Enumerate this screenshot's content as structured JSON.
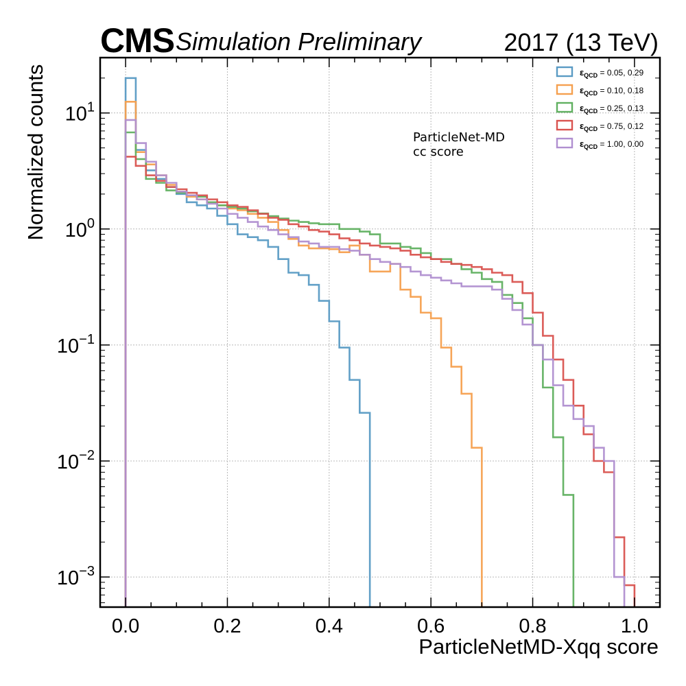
{
  "header": {
    "experiment": "CMS",
    "status": "Simulation Preliminary",
    "lumi": "2017 (13 TeV)"
  },
  "annotation": {
    "line1": "ParticleNet-MD",
    "line2": "cc score"
  },
  "chart_data": {
    "type": "histogram-step",
    "xlabel": "ParticleNetMD-Xqq score",
    "ylabel": "Normalized counts",
    "xlim": [
      -0.05,
      1.05
    ],
    "ylim": [
      0.00055,
      30
    ],
    "yscale": "log",
    "grid": true,
    "legend_position": "top-right",
    "x_ticks": [
      "0.0",
      "0.2",
      "0.4",
      "0.6",
      "0.8",
      "1.0"
    ],
    "x_tick_values": [
      0.0,
      0.2,
      0.4,
      0.6,
      0.8,
      1.0
    ],
    "y_ticks": [
      {
        "value": 10,
        "base": "10",
        "exp": "1"
      },
      {
        "value": 1,
        "base": "10",
        "exp": "0"
      },
      {
        "value": 0.1,
        "base": "10",
        "exp": "−1"
      },
      {
        "value": 0.01,
        "base": "10",
        "exp": "−2"
      },
      {
        "value": 0.001,
        "base": "10",
        "exp": "−3"
      }
    ],
    "bin_width": 0.02,
    "bin_edges_start": 0.0,
    "series": [
      {
        "name": "ε_QCD = 0.05, 0.29",
        "legend_symbol": "ε",
        "legend_sub": "QCD",
        "legend_value": " = 0.05, 0.29",
        "color": "#5a9bc4",
        "values": [
          20.0,
          4.8,
          3.2,
          2.7,
          2.3,
          2.0,
          1.7,
          1.6,
          1.5,
          1.3,
          1.1,
          0.9,
          0.85,
          0.8,
          0.7,
          0.55,
          0.42,
          0.4,
          0.33,
          0.24,
          0.16,
          0.095,
          0.05,
          0.026,
          0,
          0,
          0,
          0,
          0,
          0,
          0,
          0,
          0,
          0,
          0,
          0,
          0,
          0,
          0,
          0,
          0,
          0,
          0,
          0,
          0,
          0,
          0,
          0,
          0,
          0
        ]
      },
      {
        "name": "ε_QCD = 0.10, 0.18",
        "legend_symbol": "ε",
        "legend_sub": "QCD",
        "legend_value": " = 0.10, 0.18",
        "color": "#f5a04f",
        "values": [
          12.5,
          4.6,
          3.6,
          2.9,
          2.4,
          2.1,
          1.9,
          1.8,
          1.7,
          1.6,
          1.5,
          1.45,
          1.35,
          1.25,
          1.15,
          0.98,
          0.82,
          0.72,
          0.68,
          0.68,
          0.67,
          0.63,
          0.72,
          0.6,
          0.43,
          0.43,
          0.5,
          0.3,
          0.26,
          0.19,
          0.17,
          0.095,
          0.065,
          0.038,
          0.013,
          0,
          0,
          0,
          0,
          0,
          0,
          0,
          0,
          0,
          0,
          0,
          0,
          0,
          0,
          0
        ]
      },
      {
        "name": "ε_QCD = 0.25, 0.13",
        "legend_symbol": "ε",
        "legend_sub": "QCD",
        "legend_value": " = 0.25, 0.13",
        "color": "#60b060",
        "values": [
          6.8,
          4.0,
          2.7,
          2.5,
          2.15,
          2.05,
          1.95,
          1.9,
          1.7,
          1.6,
          1.55,
          1.5,
          1.42,
          1.36,
          1.29,
          1.23,
          1.18,
          1.15,
          1.12,
          1.1,
          1.1,
          1.0,
          1.0,
          0.95,
          0.9,
          0.75,
          0.75,
          0.7,
          0.68,
          0.62,
          0.55,
          0.55,
          0.5,
          0.45,
          0.42,
          0.37,
          0.35,
          0.27,
          0.23,
          0.17,
          0.1,
          0.043,
          0.016,
          0.0051,
          0.00053,
          0,
          0,
          0,
          0,
          0
        ]
      },
      {
        "name": "ε_QCD = 0.75, 0.12",
        "legend_symbol": "ε",
        "legend_sub": "QCD",
        "legend_value": " = 0.75, 0.12",
        "color": "#d9534f",
        "values": [
          4.2,
          3.5,
          2.9,
          2.6,
          2.3,
          2.2,
          2.05,
          1.95,
          1.8,
          1.7,
          1.6,
          1.55,
          1.45,
          1.35,
          1.25,
          1.2,
          1.1,
          1.05,
          0.98,
          0.95,
          0.9,
          0.83,
          0.8,
          0.75,
          0.72,
          0.7,
          0.68,
          0.65,
          0.6,
          0.57,
          0.55,
          0.52,
          0.5,
          0.49,
          0.47,
          0.45,
          0.42,
          0.4,
          0.35,
          0.28,
          0.19,
          0.12,
          0.075,
          0.05,
          0.03,
          0.017,
          0.01,
          0.008,
          0.0022,
          0.00085
        ]
      },
      {
        "name": "ε_QCD = 1.00, 0.00",
        "legend_symbol": "ε",
        "legend_sub": "QCD",
        "legend_value": " = 1.00, 0.00",
        "color": "#b08fd0",
        "values": [
          8.7,
          5.5,
          3.8,
          2.9,
          2.5,
          2.1,
          1.95,
          1.8,
          1.65,
          1.5,
          1.35,
          1.25,
          1.15,
          1.05,
          0.98,
          0.9,
          0.85,
          0.78,
          0.75,
          0.7,
          0.7,
          0.67,
          0.65,
          0.6,
          0.55,
          0.52,
          0.5,
          0.47,
          0.43,
          0.4,
          0.38,
          0.36,
          0.34,
          0.32,
          0.32,
          0.32,
          0.3,
          0.25,
          0.2,
          0.15,
          0.1,
          0.075,
          0.045,
          0.03,
          0.023,
          0.02,
          0.013,
          0.01,
          0.001,
          0.00025
        ]
      }
    ]
  }
}
